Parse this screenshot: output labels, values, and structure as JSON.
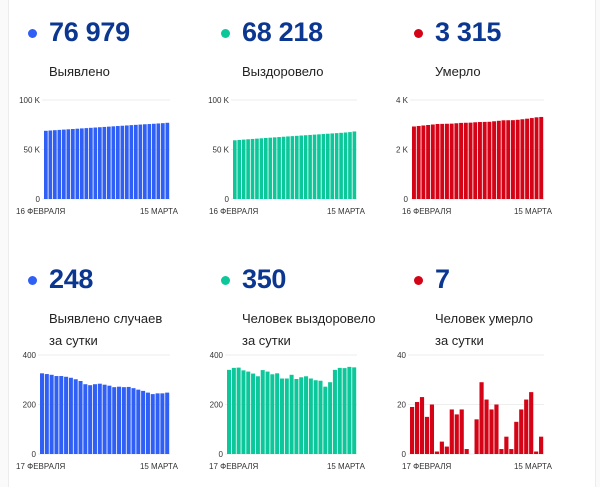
{
  "cards": [
    {
      "value": "76 979",
      "label_line1": "Выявлено",
      "label_line2": "",
      "color": "#2f5ff5"
    },
    {
      "value": "68 218",
      "label_line1": "Выздоровело",
      "label_line2": "",
      "color": "#0bc79a"
    },
    {
      "value": "3 315",
      "label_line1": "Умерло",
      "label_line2": "",
      "color": "#d40315"
    },
    {
      "value": "248",
      "label_line1": "Выявлено случаев",
      "label_line2": "за сутки",
      "color": "#2f5ff5"
    },
    {
      "value": "350",
      "label_line1": "Человек выздоровело",
      "label_line2": "за сутки",
      "color": "#0bc79a"
    },
    {
      "value": "7",
      "label_line1": "Человек умерло",
      "label_line2": "за сутки",
      "color": "#d40315"
    }
  ],
  "chart_data": [
    {
      "type": "bar",
      "title": "Выявлено",
      "x_start_label": "16 ФЕВРАЛЯ",
      "x_end_label": "15 МАРТА",
      "ylim": [
        0,
        100000
      ],
      "yticks": [
        0,
        50000,
        100000
      ],
      "ytick_labels": [
        "0",
        "50 K",
        "100 K"
      ],
      "grid": true,
      "color": "#2f5ff5",
      "values": [
        68900,
        69200,
        69500,
        69800,
        70100,
        70400,
        70700,
        71000,
        71300,
        71600,
        71900,
        72200,
        72500,
        72800,
        73100,
        73400,
        73700,
        74000,
        74300,
        74600,
        74900,
        75200,
        75500,
        75700,
        76000,
        76300,
        76600,
        76979
      ]
    },
    {
      "type": "bar",
      "title": "Выздоровело",
      "x_start_label": "16 ФЕВРАЛЯ",
      "x_end_label": "15 МАРТА",
      "ylim": [
        0,
        100000
      ],
      "yticks": [
        0,
        50000,
        100000
      ],
      "ytick_labels": [
        "0",
        "50 K",
        "100 K"
      ],
      "grid": true,
      "color": "#0bc79a",
      "values": [
        59300,
        59650,
        60000,
        60330,
        60650,
        60980,
        61300,
        61620,
        61940,
        62260,
        62570,
        62880,
        63200,
        63500,
        63820,
        64120,
        64420,
        64720,
        65020,
        65320,
        65620,
        65930,
        66230,
        66530,
        66850,
        67200,
        67550,
        68218
      ]
    },
    {
      "type": "bar",
      "title": "Умерло",
      "x_start_label": "16 ФЕВРАЛЯ",
      "x_end_label": "15 МАРТА",
      "ylim": [
        0,
        4000
      ],
      "yticks": [
        0,
        2000,
        4000
      ],
      "ytick_labels": [
        "0",
        "2 K",
        "4 K"
      ],
      "grid": true,
      "color": "#d40315",
      "values": [
        2930,
        2950,
        2970,
        2990,
        3010,
        3030,
        3035,
        3040,
        3045,
        3060,
        3075,
        3080,
        3085,
        3100,
        3110,
        3115,
        3120,
        3140,
        3160,
        3180,
        3182,
        3185,
        3200,
        3222,
        3245,
        3270,
        3300,
        3315
      ]
    },
    {
      "type": "bar",
      "title": "Выявлено случаев за сутки",
      "x_start_label": "17 ФЕВРАЛЯ",
      "x_end_label": "15 МАРТА",
      "ylim": [
        0,
        400
      ],
      "yticks": [
        0,
        200,
        400
      ],
      "ytick_labels": [
        "0",
        "200",
        "400"
      ],
      "grid": true,
      "color": "#2f5ff5",
      "values": [
        326,
        323,
        320,
        315,
        315,
        312,
        308,
        302,
        295,
        282,
        278,
        282,
        284,
        280,
        276,
        270,
        272,
        270,
        271,
        266,
        260,
        255,
        248,
        242,
        245,
        245,
        248
      ]
    },
    {
      "type": "bar",
      "title": "Человек выздоровело за сутки",
      "x_start_label": "17 ФЕВРАЛЯ",
      "x_end_label": "15 МАРТА",
      "ylim": [
        0,
        400
      ],
      "yticks": [
        0,
        200,
        400
      ],
      "ytick_labels": [
        "0",
        "200",
        "400"
      ],
      "grid": true,
      "color": "#0bc79a",
      "values": [
        340,
        348,
        349,
        338,
        333,
        325,
        314,
        339,
        333,
        322,
        326,
        305,
        305,
        320,
        303,
        310,
        314,
        305,
        298,
        296,
        272,
        290,
        340,
        348,
        347,
        352,
        350
      ]
    },
    {
      "type": "bar",
      "title": "Человек умерло за сутки",
      "x_start_label": "17 ФЕВРАЛЯ",
      "x_end_label": "15 МАРТА",
      "ylim": [
        0,
        40
      ],
      "yticks": [
        0,
        20,
        40
      ],
      "ytick_labels": [
        "0",
        "20",
        "40"
      ],
      "grid": true,
      "color": "#d40315",
      "values": [
        19,
        21,
        23,
        15,
        20,
        1,
        5,
        3,
        18,
        16,
        18,
        2,
        0,
        14,
        29,
        22,
        18,
        20,
        2,
        7,
        2,
        13,
        18,
        22,
        25,
        1,
        7
      ]
    }
  ]
}
